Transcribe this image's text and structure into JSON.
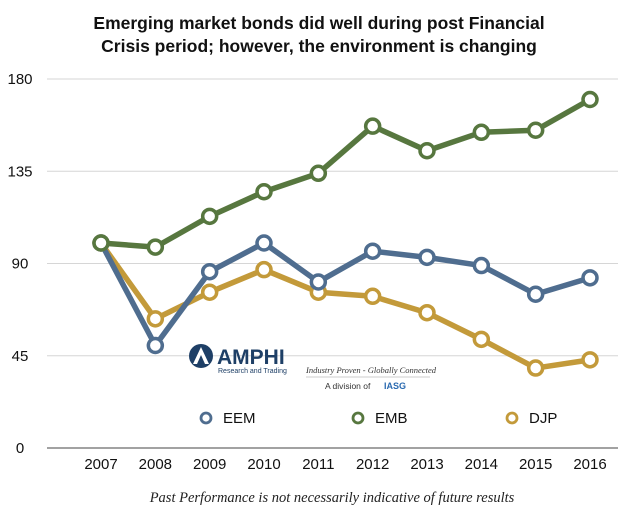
{
  "chart_data": {
    "type": "line",
    "title_lines": [
      "Emerging market bonds did well during post Financial",
      "Crisis period; however, the environment is changing"
    ],
    "categories": [
      "2007",
      "2008",
      "2009",
      "2010",
      "2011",
      "2012",
      "2013",
      "2014",
      "2015",
      "2016"
    ],
    "ylim": [
      0,
      180
    ],
    "yticks": [
      "0",
      "45",
      "90",
      "135",
      "180"
    ],
    "grid": true,
    "legend_position": "bottom",
    "series": [
      {
        "name": "EEM",
        "color": "#4f6d8f",
        "values": [
          100,
          50,
          86,
          100,
          81,
          96,
          93,
          89,
          75,
          83
        ]
      },
      {
        "name": "EMB",
        "color": "#57773f",
        "values": [
          100,
          98,
          113,
          125,
          134,
          157,
          145,
          154,
          155,
          170
        ]
      },
      {
        "name": "DJP",
        "color": "#c39a3a",
        "values": [
          100,
          63,
          76,
          87,
          76,
          74,
          66,
          53,
          39,
          43
        ]
      }
    ]
  },
  "logo": {
    "name": "AMPHI",
    "tagline": "Research and Trading",
    "slogan": "Industry Proven - Globally Connected",
    "division_prefix": "A division of",
    "division": "IASG"
  },
  "footnote": "Past Performance is not necessarily indicative of future results"
}
